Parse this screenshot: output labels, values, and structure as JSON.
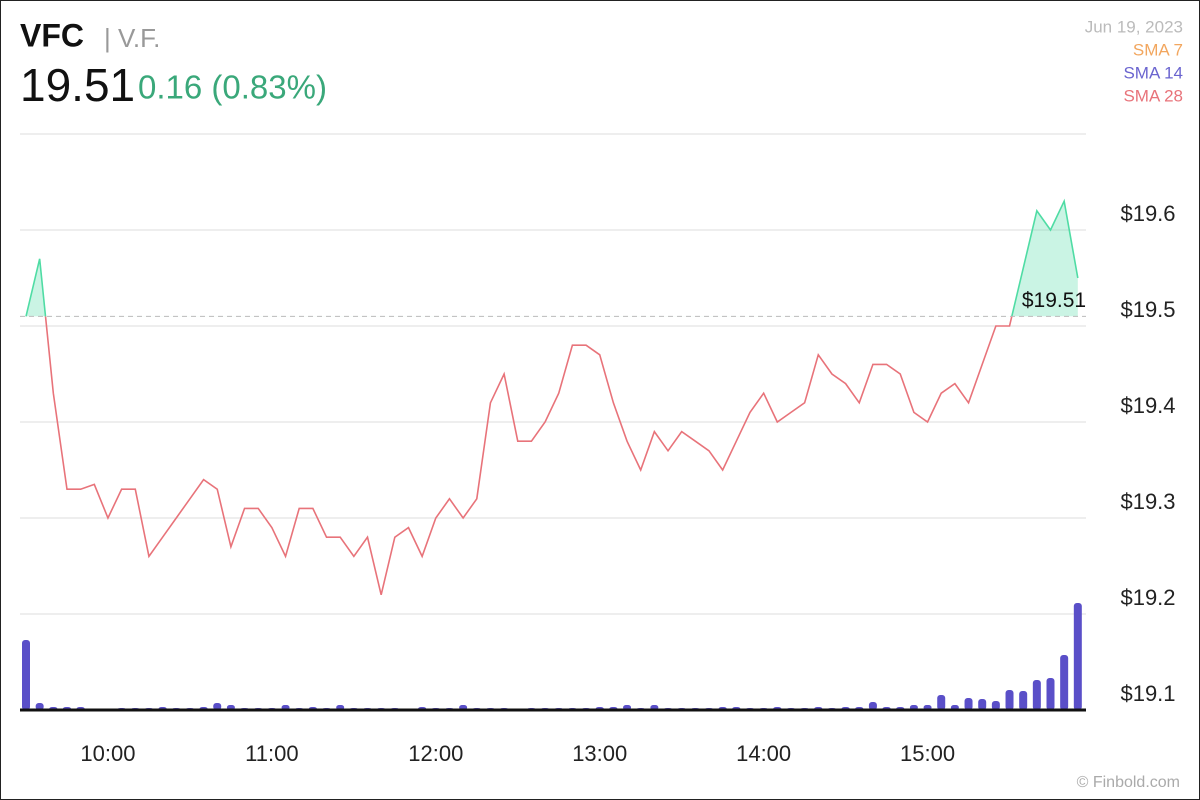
{
  "chart_data": {
    "type": "line",
    "symbol": "VFC",
    "company": "| V.F.",
    "price": 19.51,
    "change": "0.16 (0.83%)",
    "date": "Jun 19, 2023",
    "legend": [
      {
        "name": "SMA 7",
        "color": "#f2a65e"
      },
      {
        "name": "SMA 14",
        "color": "#6a64cf"
      },
      {
        "name": "SMA 28",
        "color": "#e8737a"
      }
    ],
    "watermark": "© Finbold.com",
    "categories": [
      null,
      null,
      null,
      null,
      null,
      null,
      "10:00",
      null,
      null,
      null,
      null,
      null,
      null,
      null,
      null,
      null,
      null,
      null,
      "11:00",
      null,
      null,
      null,
      null,
      null,
      null,
      null,
      null,
      null,
      null,
      null,
      "12:00",
      null,
      null,
      null,
      null,
      null,
      null,
      null,
      null,
      null,
      null,
      null,
      "13:00",
      null,
      null,
      null,
      null,
      null,
      null,
      null,
      null,
      null,
      null,
      null,
      "14:00",
      null,
      null,
      null,
      null,
      null,
      null,
      null,
      null,
      null,
      null,
      null,
      "15:00",
      null,
      null,
      null,
      null,
      null,
      null,
      null,
      null,
      null,
      null,
      null
    ],
    "series": [
      {
        "color_up": "#4fdca4",
        "color_down": "#e8737a",
        "values": [
          19.51,
          19.57,
          19.43,
          19.33,
          19.33,
          19.335,
          19.3,
          19.33,
          19.33,
          19.26,
          19.28,
          19.3,
          19.32,
          19.34,
          19.33,
          19.27,
          19.31,
          19.31,
          19.29,
          19.26,
          19.31,
          19.31,
          19.28,
          19.28,
          19.26,
          19.28,
          19.22,
          19.28,
          19.29,
          19.26,
          19.3,
          19.32,
          19.3,
          19.32,
          19.42,
          19.45,
          19.38,
          19.38,
          19.4,
          19.43,
          19.48,
          19.48,
          19.47,
          19.42,
          19.38,
          19.35,
          19.39,
          19.37,
          19.39,
          19.38,
          19.37,
          19.35,
          19.38,
          19.41,
          19.43,
          19.4,
          19.41,
          19.42,
          19.47,
          19.45,
          19.44,
          19.42,
          19.46,
          19.46,
          19.45,
          19.41,
          19.4,
          19.43,
          19.44,
          19.42,
          19.46,
          19.5,
          19.5,
          19.56,
          19.62,
          19.6,
          19.63,
          19.55
        ]
      },
      {
        "axis": "y2",
        "color": "#5a4fc8",
        "values": [
          70,
          7,
          3,
          3,
          3,
          1,
          1,
          2,
          2,
          2,
          3,
          2,
          2,
          3,
          7,
          5,
          2,
          2,
          2,
          5,
          2,
          3,
          2,
          5,
          2,
          2,
          2,
          2,
          1,
          3,
          2,
          2,
          5,
          2,
          2,
          2,
          1,
          2,
          2,
          2,
          2,
          2,
          3,
          3,
          5,
          2,
          5,
          2,
          2,
          2,
          2,
          3,
          3,
          2,
          2,
          3,
          2,
          2,
          3,
          2,
          3,
          3,
          8,
          3,
          3,
          5,
          5,
          15,
          5,
          12,
          11,
          9,
          20,
          19,
          30,
          32,
          55,
          107
        ]
      }
    ],
    "reference": {
      "value": 19.51,
      "label": "$19.51"
    },
    "ylim": [
      19.1,
      19.7
    ],
    "yticks": [
      {
        "value": 19.1,
        "label": "$19.1"
      },
      {
        "value": 19.2,
        "label": "$19.2"
      },
      {
        "value": 19.3,
        "label": "$19.3"
      },
      {
        "value": 19.4,
        "label": "$19.4"
      },
      {
        "value": 19.5,
        "label": "$19.5"
      },
      {
        "value": 19.6,
        "label": "$19.6"
      }
    ],
    "y2lim": [
      0,
      576
    ],
    "grid": true
  }
}
